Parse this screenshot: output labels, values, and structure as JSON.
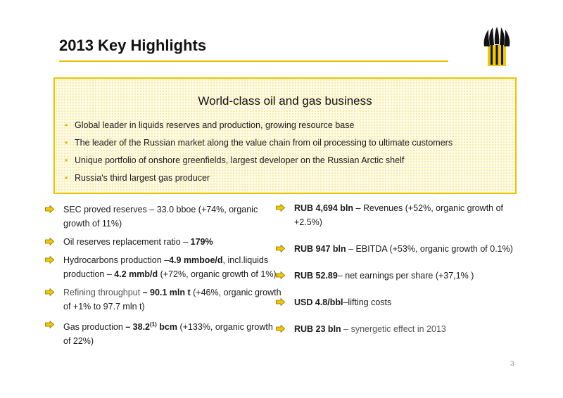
{
  "title": "2013 Key Highlights",
  "colors": {
    "accent": "#e9c400",
    "box_fill": "#fffbe3"
  },
  "logo": {
    "icon": "rosneft-logo-icon"
  },
  "highlight_box": {
    "heading": "World-class oil and gas business",
    "bullets": [
      "Global leader in liquids reserves and production, growing resource base",
      "The leader of the Russian market along the value chain from oil processing to ultimate customers",
      "Unique portfolio of onshore greenfields, largest developer on the Russian Arctic shelf",
      "Russia's third largest gas producer"
    ]
  },
  "left_column": {
    "i0": {
      "a": "SEC proved reserves – 33.0 bboe (+74%, organic growth of 11%)"
    },
    "i1": {
      "a": "Oil reserves replacement ratio – ",
      "b": "179%"
    },
    "i2": {
      "a": "Hydrocarbons production –",
      "b": "4.9 mmboe/d",
      "c": ", incl.liquids production – ",
      "d": "4.2 mmb/d",
      "e": " (+72%, organic growth of 1%)"
    },
    "i3": {
      "a": "Refining throughput",
      "b": " – 90.1 mln t",
      "c": " (+46%, organic growth of +1% to 97.7 mln t)"
    },
    "i4": {
      "a": "Gas production ",
      "b": "– 38.2",
      "sup": "(1)",
      "c": " bcm",
      "d": " (+133%, organic growth of 22%)"
    }
  },
  "right_column": {
    "i0": {
      "b": "RUB 4,694 bln",
      "a": " – Revenues (+52%, organic growth of +2.5%)"
    },
    "i1": {
      "b": "RUB 947 bln",
      "a": " – EBITDA (+53%, organic growth of 0.1%)"
    },
    "i2": {
      "b": "RUB 52.89",
      "a": "– net earnings per share (+37,1% )"
    },
    "i3": {
      "b": "USD 4.8/bbl",
      "a": "–lifting costs"
    },
    "i4": {
      "b": "RUB 23 bln",
      "a": " – synergetic effect in 2013"
    }
  },
  "page_number": "3"
}
